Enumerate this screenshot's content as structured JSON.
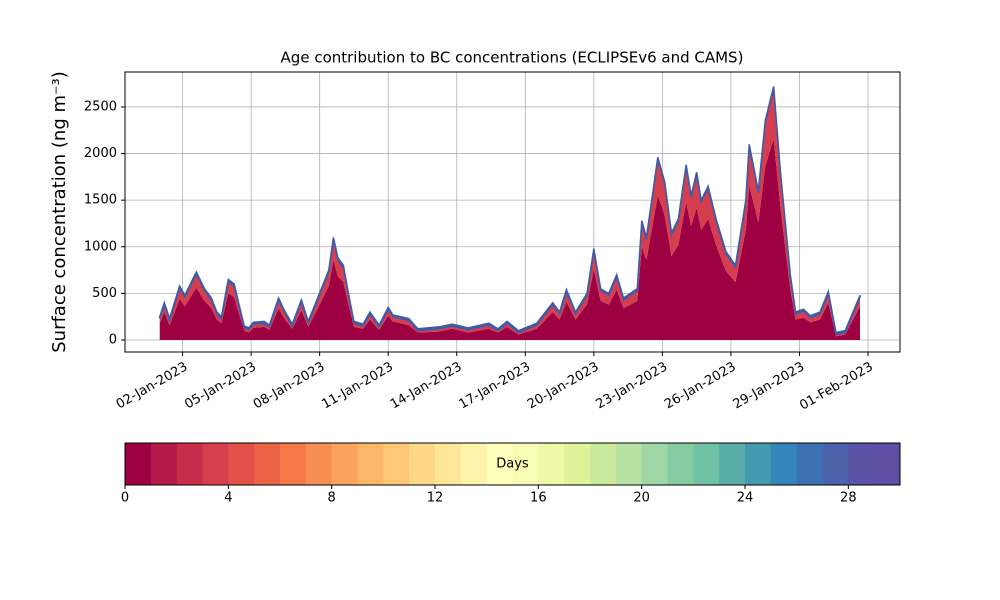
{
  "chart_data": {
    "type": "stacked_area",
    "title": "Age contribution to BC concentrations (ECLIPSEv6 and CAMS)",
    "y_label": "Surface concentration (ng m⁻³)",
    "x": [
      1.0,
      1.2,
      1.43,
      1.87,
      2.1,
      2.6,
      2.96,
      3.26,
      3.5,
      3.7,
      4.0,
      4.26,
      4.5,
      4.7,
      4.9,
      5.1,
      5.57,
      5.8,
      6.2,
      6.43,
      6.8,
      7.2,
      7.5,
      7.96,
      8.4,
      8.6,
      8.8,
      9.04,
      9.26,
      9.5,
      9.9,
      10.2,
      10.6,
      11.0,
      11.2,
      11.9,
      12.3,
      13.2,
      13.8,
      14.5,
      15.4,
      15.8,
      16.2,
      16.7,
      17.5,
      18.2,
      18.5,
      18.8,
      19.2,
      19.7,
      20.0,
      20.3,
      20.65,
      21.0,
      21.3,
      21.9,
      22.1,
      22.3,
      22.8,
      23.1,
      23.4,
      23.7,
      24.04,
      24.26,
      24.5,
      24.7,
      25.0,
      25.35,
      25.78,
      26.2,
      26.65,
      26.8,
      27.2,
      27.5,
      27.87,
      28.17,
      28.6,
      28.83,
      29.17,
      29.48,
      29.9,
      30.26,
      30.6,
      31.0,
      31.65
    ],
    "series": [
      {
        "color": "#9e0142",
        "values": [
          180,
          300,
          160,
          440,
          360,
          560,
          420,
          340,
          220,
          180,
          500,
          460,
          260,
          100,
          80,
          130,
          140,
          110,
          340,
          240,
          120,
          320,
          140,
          360,
          580,
          860,
          680,
          620,
          380,
          140,
          120,
          220,
          110,
          260,
          200,
          160,
          80,
          90,
          120,
          80,
          120,
          80,
          140,
          60,
          120,
          300,
          220,
          410,
          220,
          380,
          760,
          420,
          380,
          540,
          340,
          420,
          1000,
          860,
          1550,
          1340,
          900,
          1020,
          1480,
          1220,
          1420,
          1180,
          1300,
          1020,
          740,
          620,
          1180,
          1660,
          1260,
          1860,
          2160,
          1420,
          540,
          220,
          240,
          190,
          220,
          400,
          40,
          60,
          360
        ]
      },
      {
        "color": "#d53e4f",
        "values": [
          50,
          80,
          50,
          120,
          100,
          150,
          110,
          90,
          60,
          50,
          130,
          120,
          70,
          30,
          30,
          40,
          40,
          30,
          90,
          70,
          30,
          90,
          40,
          100,
          150,
          220,
          180,
          160,
          100,
          40,
          30,
          60,
          30,
          70,
          50,
          50,
          20,
          30,
          30,
          30,
          40,
          20,
          40,
          20,
          40,
          80,
          60,
          110,
          60,
          100,
          200,
          110,
          100,
          140,
          90,
          110,
          260,
          220,
          390,
          340,
          230,
          260,
          380,
          310,
          360,
          300,
          330,
          260,
          190,
          160,
          300,
          420,
          320,
          470,
          540,
          360,
          140,
          60,
          70,
          50,
          60,
          100,
          20,
          20,
          100
        ]
      },
      {
        "color": "#3d5ca8",
        "values": [
          20,
          20,
          20,
          20,
          20,
          20,
          20,
          20,
          20,
          20,
          20,
          20,
          20,
          20,
          20,
          20,
          20,
          20,
          20,
          20,
          20,
          20,
          20,
          20,
          20,
          20,
          20,
          20,
          20,
          20,
          20,
          20,
          20,
          20,
          20,
          20,
          20,
          20,
          20,
          20,
          20,
          20,
          20,
          20,
          20,
          20,
          20,
          20,
          20,
          20,
          20,
          20,
          20,
          20,
          20,
          20,
          20,
          20,
          20,
          20,
          20,
          20,
          20,
          20,
          20,
          20,
          20,
          20,
          20,
          20,
          20,
          20,
          20,
          20,
          20,
          20,
          20,
          20,
          20,
          20,
          20,
          20,
          20,
          20,
          20
        ]
      }
    ],
    "xlim": [
      -0.52,
      33.4
    ],
    "xticks": [
      {
        "value": 2,
        "label": "02-Jan-2023"
      },
      {
        "value": 5,
        "label": "05-Jan-2023"
      },
      {
        "value": 8,
        "label": "08-Jan-2023"
      },
      {
        "value": 11,
        "label": "11-Jan-2023"
      },
      {
        "value": 14,
        "label": "14-Jan-2023"
      },
      {
        "value": 17,
        "label": "17-Jan-2023"
      },
      {
        "value": 20,
        "label": "20-Jan-2023"
      },
      {
        "value": 23,
        "label": "23-Jan-2023"
      },
      {
        "value": 26,
        "label": "26-Jan-2023"
      },
      {
        "value": 29,
        "label": "29-Jan-2023"
      },
      {
        "value": 32,
        "label": "01-Feb-2023"
      }
    ],
    "ylim": [
      -129,
      2875
    ],
    "yticks": [
      0,
      500,
      1000,
      1500,
      2000,
      2500
    ],
    "grid": true,
    "colorbar": {
      "label": "Days",
      "lim": [
        0,
        30
      ],
      "ticks": [
        0,
        4,
        8,
        12,
        16,
        20,
        24,
        28
      ],
      "colors": [
        "#9e0142",
        "#b31a47",
        "#c72c4a",
        "#d7404e",
        "#e25249",
        "#ec6445",
        "#f67a49",
        "#f98e52",
        "#fca45e",
        "#fdb769",
        "#fec877",
        "#fed887",
        "#fee698",
        "#fff2aa",
        "#ffffbe",
        "#f8fcb4",
        "#eef8a6",
        "#dff299",
        "#cbe99d",
        "#b6e1a1",
        "#9ed7a4",
        "#85cca5",
        "#6fc2a5",
        "#5aaea9",
        "#4499b0",
        "#3584ba",
        "#3b71b1",
        "#4c63aa",
        "#5a53a4",
        "#5e4fa2"
      ]
    }
  }
}
